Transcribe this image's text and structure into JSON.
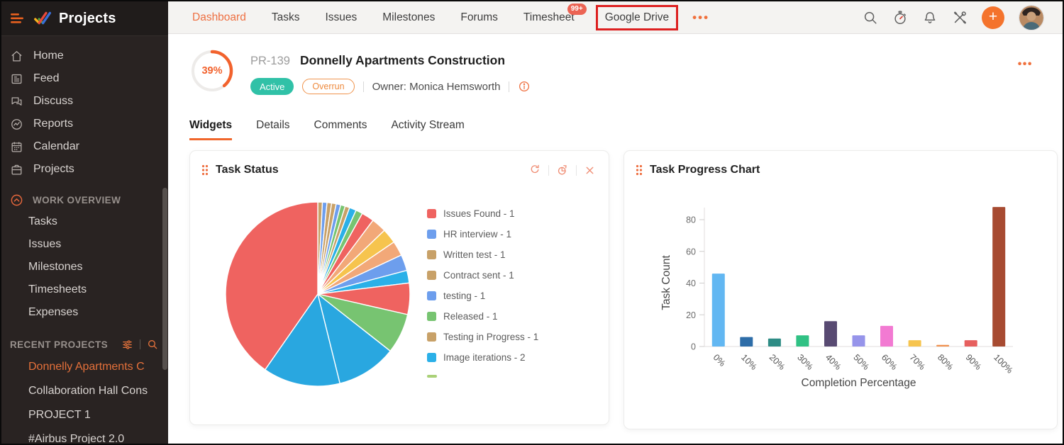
{
  "app": {
    "name": "Projects"
  },
  "sidebar": {
    "menu": [
      {
        "label": "Home",
        "icon": "home-icon"
      },
      {
        "label": "Feed",
        "icon": "feed-icon"
      },
      {
        "label": "Discuss",
        "icon": "discuss-icon"
      },
      {
        "label": "Reports",
        "icon": "reports-icon"
      },
      {
        "label": "Calendar",
        "icon": "calendar-icon"
      },
      {
        "label": "Projects",
        "icon": "projects-icon"
      }
    ],
    "work_overview": {
      "label": "WORK OVERVIEW",
      "items": [
        "Tasks",
        "Issues",
        "Milestones",
        "Timesheets",
        "Expenses"
      ]
    },
    "recent": {
      "label": "RECENT PROJECTS",
      "items": [
        {
          "label": "Donnelly Apartments C",
          "active": true
        },
        {
          "label": "Collaboration Hall Cons",
          "active": false
        },
        {
          "label": "PROJECT 1",
          "active": false
        },
        {
          "label": "#Airbus Project 2.0",
          "active": false
        }
      ]
    }
  },
  "topnav": {
    "items": [
      {
        "label": "Dashboard",
        "active": true
      },
      {
        "label": "Tasks"
      },
      {
        "label": "Issues"
      },
      {
        "label": "Milestones"
      },
      {
        "label": "Forums"
      },
      {
        "label": "Timesheet",
        "badge": "99+"
      },
      {
        "label": "Google Drive",
        "highlighted": true
      }
    ],
    "more": "•••",
    "icons": [
      "search-icon",
      "timer-icon",
      "bell-icon",
      "tools-icon",
      "add-icon",
      "avatar"
    ]
  },
  "project": {
    "progress": "39%",
    "code": "PR-139",
    "name": "Donnelly Apartments Construction",
    "status": "Active",
    "flag": "Overrun",
    "owner": "Owner: Monica Hemsworth",
    "actions": "•••"
  },
  "tabs": {
    "items": [
      {
        "label": "Widgets",
        "active": true
      },
      {
        "label": "Details"
      },
      {
        "label": "Comments"
      },
      {
        "label": "Activity Stream"
      }
    ]
  },
  "chart_data": [
    {
      "type": "pie",
      "title": "Task Status",
      "legend": [
        {
          "label": "Issues Found - 1",
          "color": "#ef6360"
        },
        {
          "label": "HR interview - 1",
          "color": "#6d9eed"
        },
        {
          "label": "Written test - 1",
          "color": "#c8a168"
        },
        {
          "label": "Contract sent - 1",
          "color": "#c8a168"
        },
        {
          "label": "testing - 1",
          "color": "#6d9eed"
        },
        {
          "label": "Released - 1",
          "color": "#77c471"
        },
        {
          "label": "Testing in Progress - 1",
          "color": "#c8a168"
        },
        {
          "label": "Image iterations - 2",
          "color": "#2bb0e8"
        }
      ],
      "partial_swatch_color": "#aad178",
      "slices": [
        {
          "value": 0.8,
          "color": "#c8a168"
        },
        {
          "value": 0.8,
          "color": "#6d9eed"
        },
        {
          "value": 0.8,
          "color": "#c8a168"
        },
        {
          "value": 0.8,
          "color": "#c8a168"
        },
        {
          "value": 0.8,
          "color": "#6d9eed"
        },
        {
          "value": 0.8,
          "color": "#77c471"
        },
        {
          "value": 0.8,
          "color": "#c8a168"
        },
        {
          "value": 1.2,
          "color": "#2bb0e8"
        },
        {
          "value": 1.2,
          "color": "#77c471"
        },
        {
          "value": 2.2,
          "color": "#ef6360"
        },
        {
          "value": 2.6,
          "color": "#f2a878"
        },
        {
          "value": 2.6,
          "color": "#f6c44e"
        },
        {
          "value": 2.6,
          "color": "#f2a878"
        },
        {
          "value": 2.8,
          "color": "#6d9eed"
        },
        {
          "value": 2.2,
          "color": "#2bb0e8"
        },
        {
          "value": 5.5,
          "color": "#ef6360"
        },
        {
          "value": 7.0,
          "color": "#77c471"
        },
        {
          "value": 10.5,
          "color": "#29a7e0"
        },
        {
          "value": 13.5,
          "color": "#29a7e0"
        },
        {
          "value": 40.2,
          "color": "#ef6360"
        }
      ]
    },
    {
      "type": "bar",
      "title": "Task Progress Chart",
      "categories": [
        "0%",
        "10%",
        "20%",
        "30%",
        "40%",
        "50%",
        "60%",
        "70%",
        "80%",
        "90%",
        "100%"
      ],
      "values": [
        46,
        6,
        5,
        7,
        16,
        7,
        13,
        4,
        1,
        4,
        88
      ],
      "colors": [
        "#62b7f2",
        "#2e6da8",
        "#2e8c85",
        "#30c184",
        "#584a72",
        "#9694ea",
        "#f27ad2",
        "#f6c44e",
        "#f0904e",
        "#e65f5e",
        "#a74b31"
      ],
      "xlabel": "Completion Percentage",
      "ylabel": "Task Count",
      "ylim": [
        0,
        90
      ],
      "yticks": [
        0,
        20,
        40,
        60,
        80
      ],
      "grid": false
    }
  ]
}
